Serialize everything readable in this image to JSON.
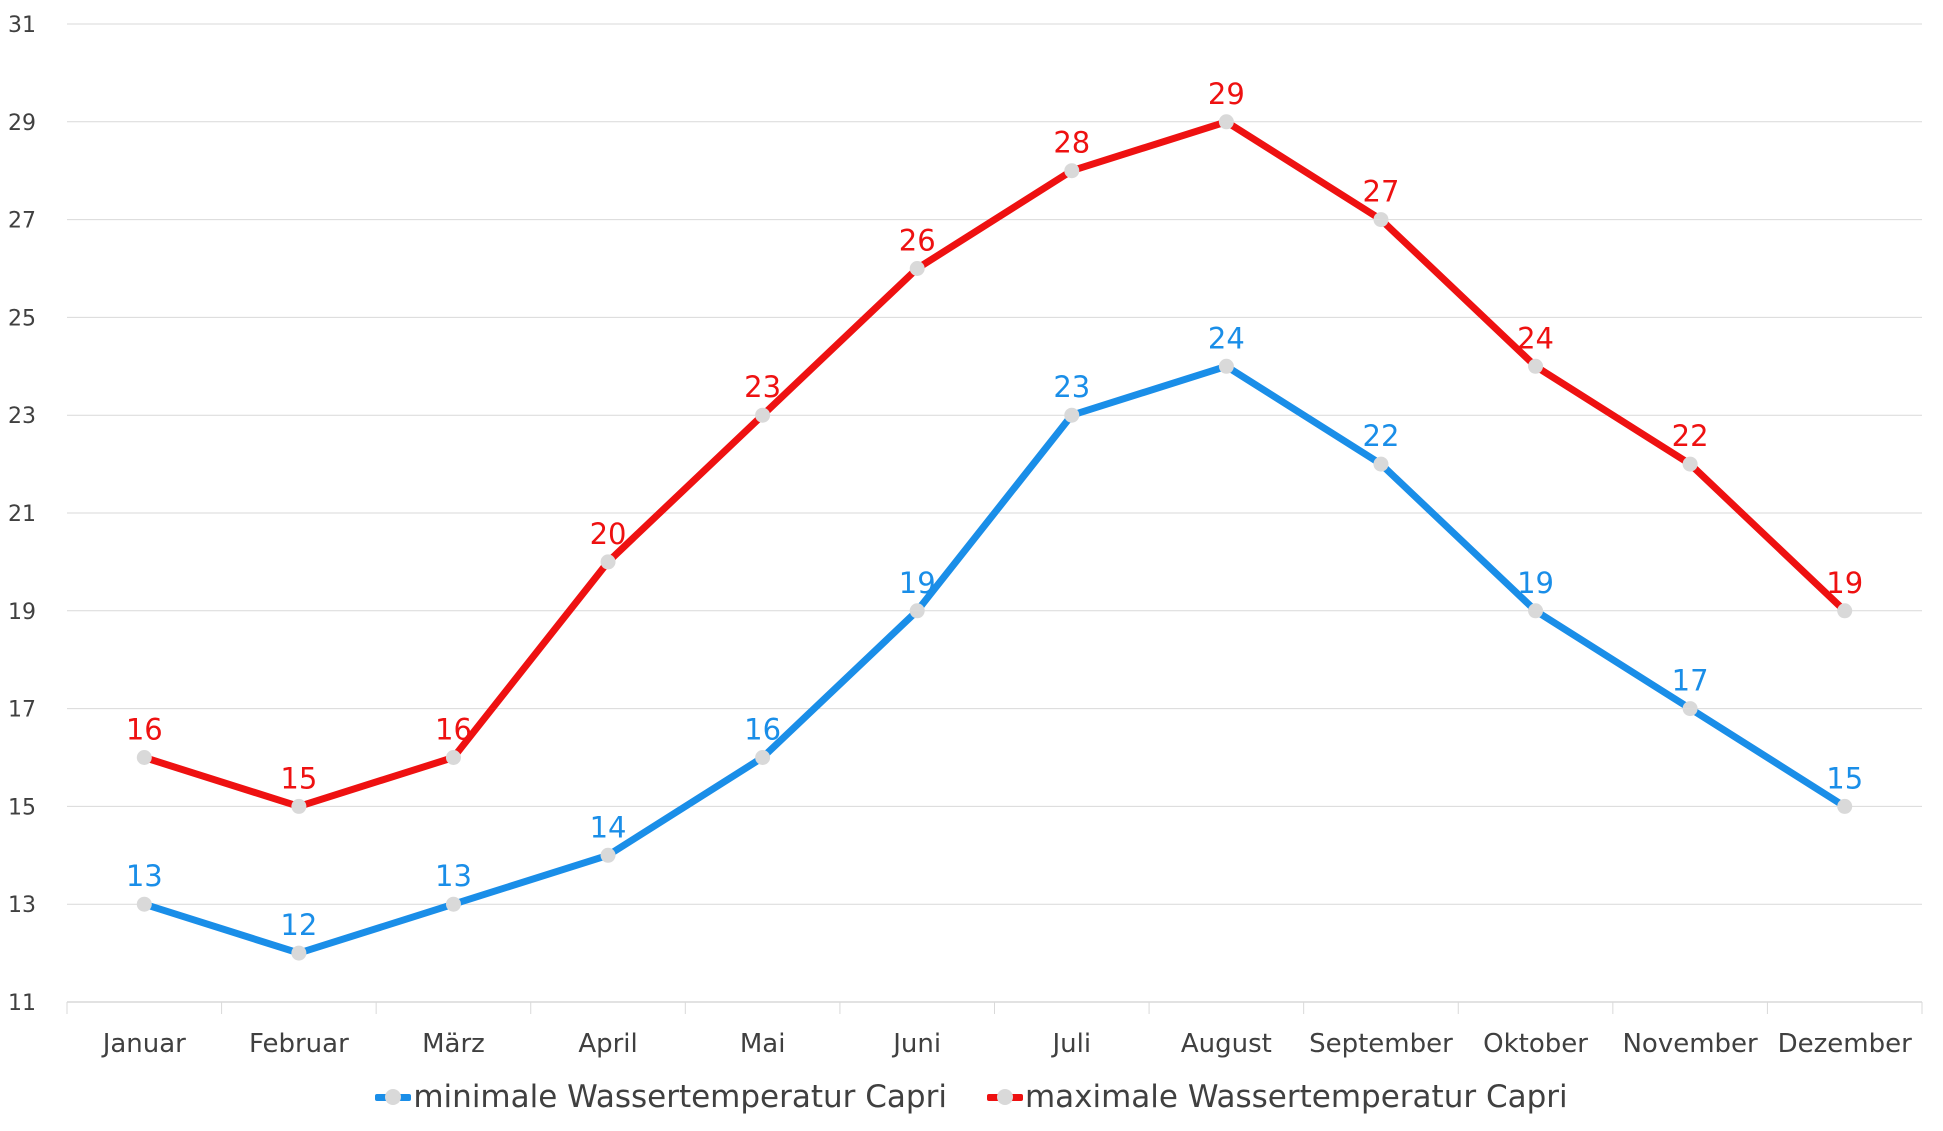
{
  "chart_data": {
    "type": "line",
    "categories": [
      "Januar",
      "Februar",
      "März",
      "April",
      "Mai",
      "Juni",
      "Juli",
      "August",
      "September",
      "Oktober",
      "November",
      "Dezember"
    ],
    "series": [
      {
        "name": "minimale Wassertemperatur Capri",
        "color": "#1a8ee8",
        "values": [
          13,
          12,
          13,
          14,
          16,
          19,
          23,
          24,
          22,
          19,
          17,
          15
        ]
      },
      {
        "name": "maximale Wassertemperatur Capri",
        "color": "#ee1111",
        "values": [
          16,
          15,
          16,
          20,
          23,
          26,
          28,
          29,
          27,
          24,
          22,
          19
        ]
      }
    ],
    "ylim": [
      11,
      31
    ],
    "yticks": [
      11,
      13,
      15,
      17,
      19,
      21,
      23,
      25,
      27,
      29,
      31
    ],
    "grid": true,
    "legend": "bottom",
    "marker_color": "#d9d9d9",
    "grid_color": "#d9d9d9",
    "tick_label_color": "#404040"
  }
}
